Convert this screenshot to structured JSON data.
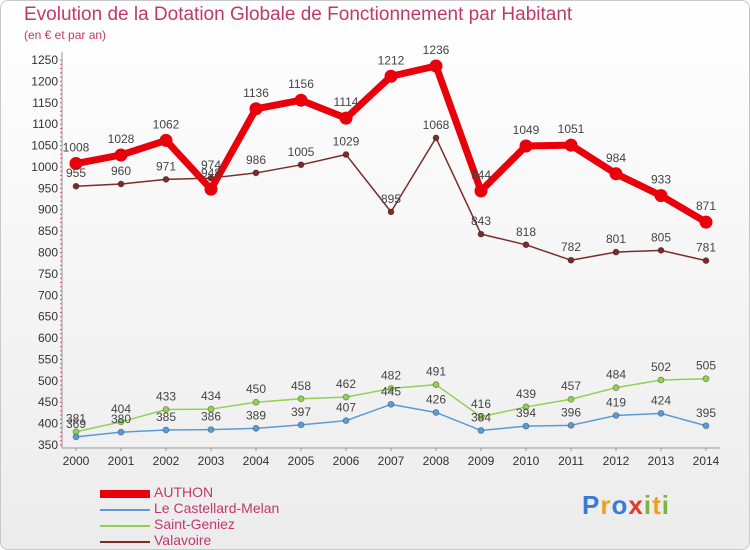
{
  "title": "Evolution de la Dotation Globale de Fonctionnement par Habitant",
  "subtitle": "(en € et par an)",
  "logo": {
    "letters": [
      {
        "ch": "P",
        "color": "#3a7bd5"
      },
      {
        "ch": "r",
        "color": "#f0a020"
      },
      {
        "ch": "o",
        "color": "#3a7bd5"
      },
      {
        "ch": "x",
        "color": "#e23b2e"
      },
      {
        "ch": "i",
        "color": "#7cb342"
      },
      {
        "ch": "t",
        "color": "#f0a020"
      },
      {
        "ch": "i",
        "color": "#7cb342"
      }
    ]
  },
  "chart_data": {
    "type": "line",
    "x": [
      "2000",
      "2001",
      "2002",
      "2003",
      "2004",
      "2005",
      "2006",
      "2007",
      "2008",
      "2009",
      "2010",
      "2011",
      "2012",
      "2013",
      "2014"
    ],
    "ylim": [
      350,
      1250
    ],
    "yticks": [
      350,
      400,
      450,
      500,
      550,
      600,
      650,
      700,
      750,
      800,
      850,
      900,
      950,
      1000,
      1050,
      1100,
      1150,
      1200,
      1250
    ],
    "grid": false,
    "legend": "bottom-left",
    "series": [
      {
        "name": "AUTHON",
        "color": "#e8000b",
        "values": [
          1008,
          1028,
          1062,
          948,
          1136,
          1156,
          1114,
          1212,
          1236,
          944,
          1049,
          1051,
          984,
          933,
          871
        ]
      },
      {
        "name": "Le Castellard-Melan",
        "color": "#5b9bd5",
        "values": [
          369,
          380,
          385,
          386,
          389,
          397,
          407,
          445,
          426,
          384,
          394,
          396,
          419,
          424,
          395
        ]
      },
      {
        "name": "Saint-Geniez",
        "color": "#92d050",
        "values": [
          381,
          404,
          433,
          434,
          450,
          458,
          462,
          482,
          491,
          416,
          439,
          457,
          484,
          502,
          505
        ]
      },
      {
        "name": "Valavoire",
        "color": "#7b2b2b",
        "values": [
          955,
          960,
          971,
          974,
          986,
          1005,
          1029,
          895,
          1068,
          843,
          818,
          782,
          801,
          805,
          781
        ]
      }
    ]
  }
}
